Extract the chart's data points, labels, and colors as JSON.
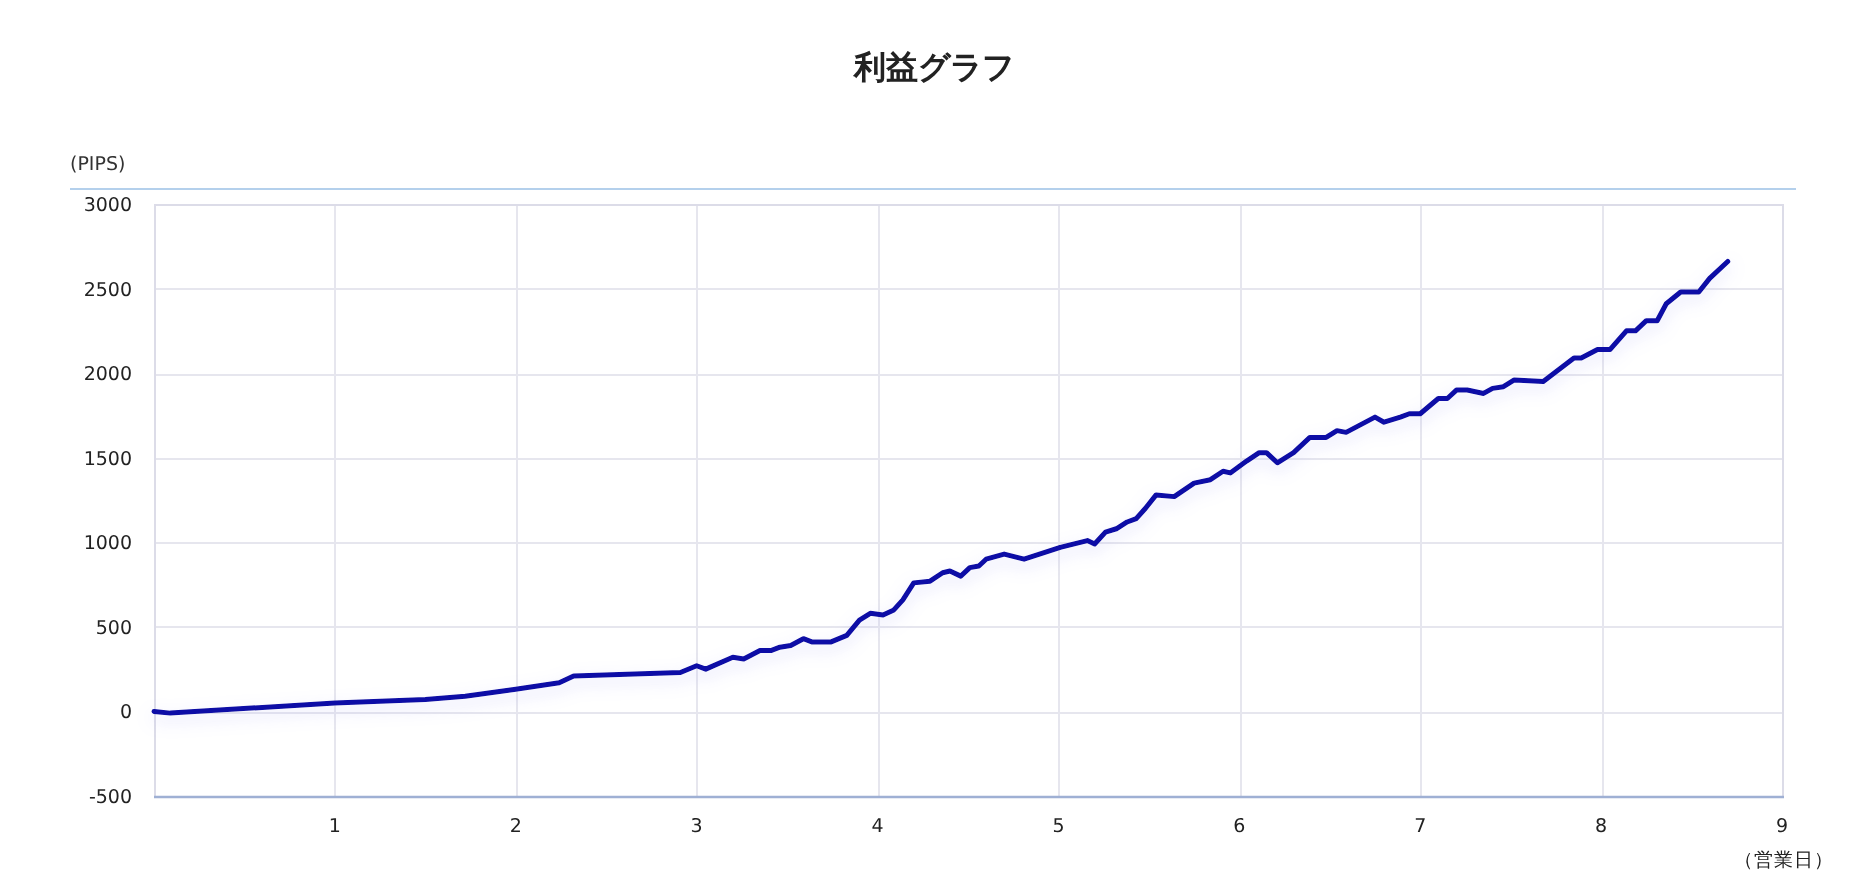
{
  "chart_data": {
    "type": "line",
    "title": "利益グラフ",
    "xlabel": "（営業日）",
    "ylabel": "(PIPS)",
    "color": "#0d0da6",
    "x": [
      0,
      0.09,
      1.0,
      1.5,
      1.72,
      1.99,
      2.24,
      2.32,
      2.91,
      3.0,
      3.05,
      3.2,
      3.26,
      3.35,
      3.41,
      3.46,
      3.52,
      3.59,
      3.64,
      3.74,
      3.83,
      3.9,
      3.96,
      4.03,
      4.09,
      4.14,
      4.2,
      4.29,
      4.36,
      4.4,
      4.46,
      4.51,
      4.56,
      4.6,
      4.7,
      4.81,
      5.01,
      5.16,
      5.2,
      5.26,
      5.32,
      5.38,
      5.43,
      5.48,
      5.54,
      5.64,
      5.75,
      5.84,
      5.91,
      5.95,
      6.04,
      6.11,
      6.15,
      6.21,
      6.3,
      6.39,
      6.48,
      6.54,
      6.59,
      6.75,
      6.8,
      6.89,
      6.94,
      7.0,
      7.1,
      7.15,
      7.2,
      7.26,
      7.35,
      7.4,
      7.46,
      7.52,
      7.68,
      7.85,
      7.89,
      7.98,
      8.05,
      8.14,
      8.19,
      8.25,
      8.31,
      8.36,
      8.44,
      8.54,
      8.6,
      8.7
    ],
    "values": [
      0,
      -10,
      50,
      70,
      90,
      130,
      170,
      210,
      230,
      270,
      250,
      320,
      310,
      360,
      360,
      380,
      390,
      430,
      410,
      410,
      450,
      540,
      580,
      570,
      600,
      660,
      760,
      770,
      820,
      830,
      800,
      850,
      860,
      900,
      930,
      900,
      970,
      1010,
      990,
      1060,
      1080,
      1120,
      1140,
      1200,
      1280,
      1270,
      1350,
      1370,
      1420,
      1410,
      1480,
      1530,
      1530,
      1470,
      1530,
      1620,
      1620,
      1660,
      1650,
      1740,
      1710,
      1740,
      1760,
      1760,
      1850,
      1850,
      1900,
      1900,
      1880,
      1910,
      1920,
      1960,
      1950,
      2090,
      2090,
      2140,
      2140,
      2250,
      2250,
      2310,
      2310,
      2410,
      2480,
      2480,
      2560,
      2660
    ],
    "xlim": [
      0,
      9
    ],
    "xticks": [
      1,
      2,
      3,
      4,
      5,
      6,
      7,
      8,
      9
    ],
    "ylim": [
      -500,
      3000
    ],
    "yticks": [
      -500,
      0,
      500,
      1000,
      1500,
      2000,
      2500,
      3000
    ],
    "grid": true
  }
}
